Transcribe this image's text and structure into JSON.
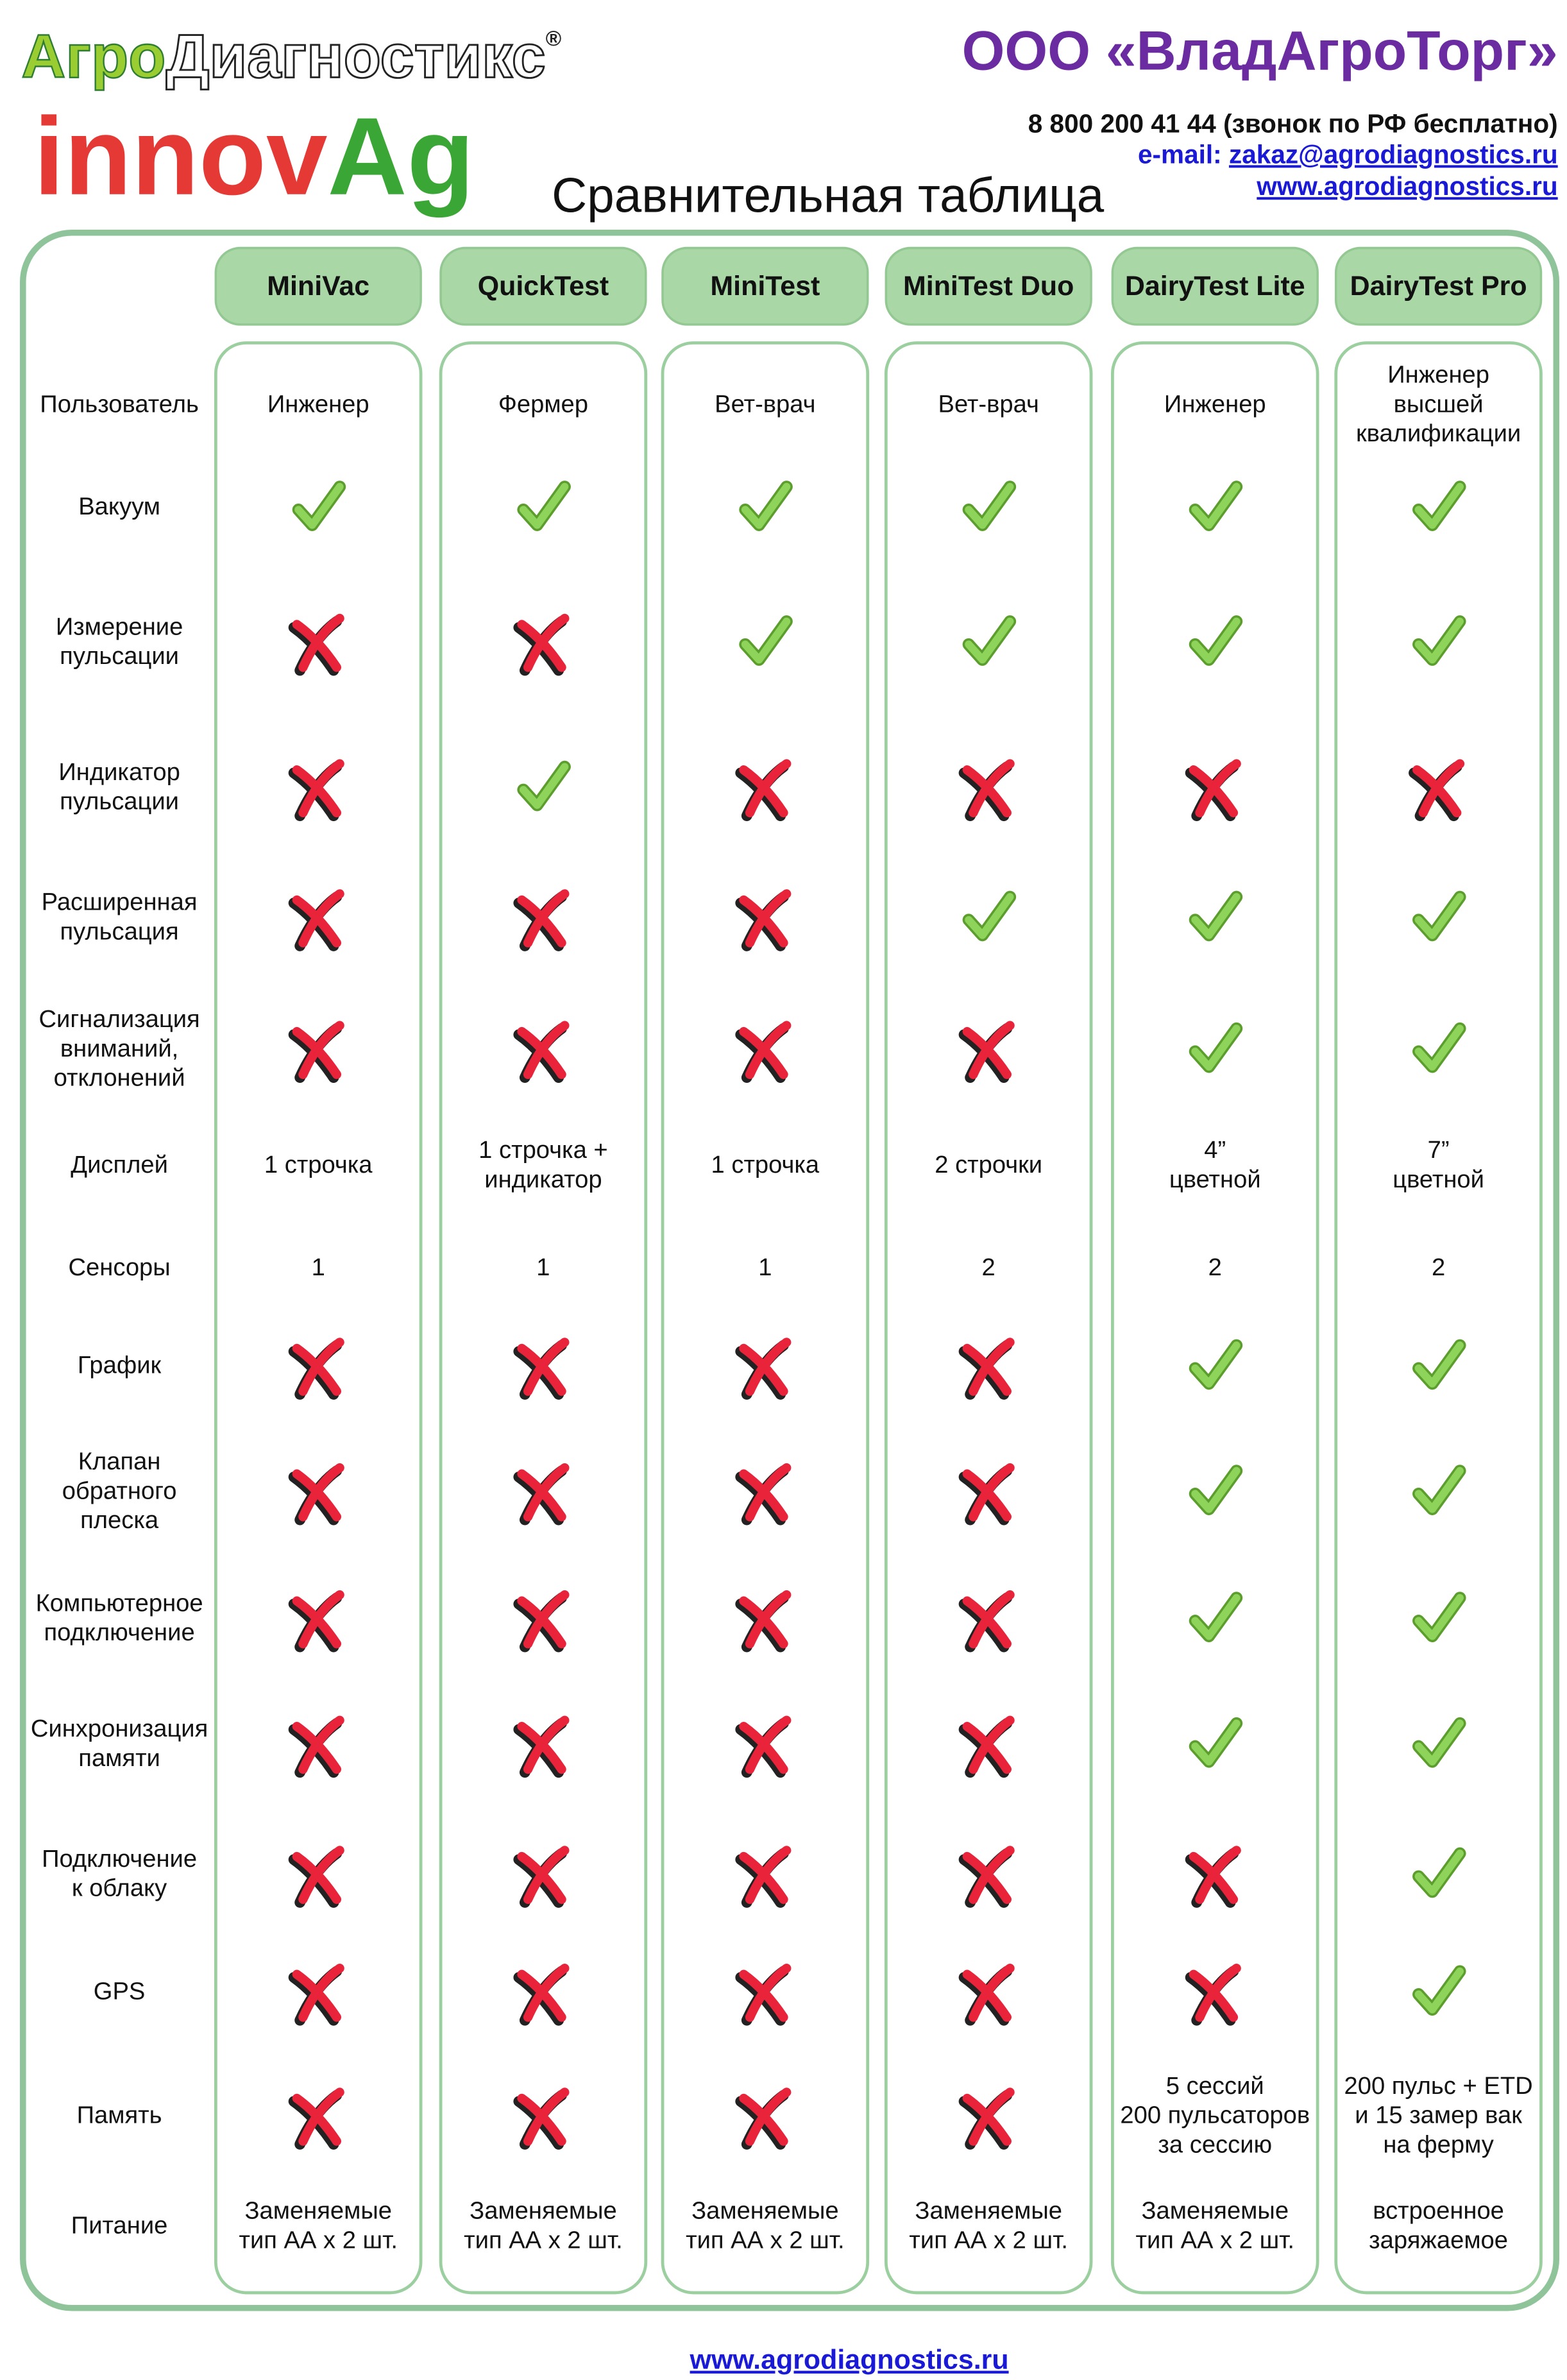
{
  "header": {
    "logo_agro": "Агро",
    "logo_diag": "Диагностикс",
    "logo_reg": "®",
    "logo_innov": "innov",
    "logo_ag": "Ag",
    "company": "ООО «ВладАгроТорг»",
    "phone": "8 800 200 41 44 (звонок по РФ бесплатно)",
    "email_label": "e-mail: ",
    "email": "zakaz@agrodiagnostics.ru",
    "site": "www.agrodiagnostics.ru",
    "title": "Сравнительная таблица"
  },
  "table": {
    "columns": [
      "MiniVac",
      "QuickTest",
      "MiniTest",
      "MiniTest Duo",
      "DairyTest Lite",
      "DairyTest Pro"
    ],
    "rows": [
      {
        "label": [
          "Пользователь"
        ],
        "cells": [
          [
            "Инженер"
          ],
          [
            "Фермер"
          ],
          [
            "Вет-врач"
          ],
          [
            "Вет-врач"
          ],
          [
            "Инженер"
          ],
          [
            "Инженер",
            "высшей",
            "квалификации"
          ]
        ]
      },
      {
        "label": [
          "Вакуум"
        ],
        "cells": [
          true,
          true,
          true,
          true,
          true,
          true
        ]
      },
      {
        "label": [
          "Измерение",
          "пульсации"
        ],
        "cells": [
          false,
          false,
          true,
          true,
          true,
          true
        ]
      },
      {
        "label": [
          "Индикатор",
          "пульсации"
        ],
        "cells": [
          false,
          true,
          false,
          false,
          false,
          false
        ]
      },
      {
        "label": [
          "Расширенная",
          "пульсация"
        ],
        "cells": [
          false,
          false,
          false,
          true,
          true,
          true
        ]
      },
      {
        "label": [
          "Сигнализация",
          "вниманий,",
          "отклонений"
        ],
        "cells": [
          false,
          false,
          false,
          false,
          true,
          true
        ]
      },
      {
        "label": [
          "Дисплей"
        ],
        "cells": [
          [
            "1 строчка"
          ],
          [
            "1 строчка +",
            "индикатор"
          ],
          [
            "1 строчка"
          ],
          [
            "2 строчки"
          ],
          [
            "4”",
            "цветной"
          ],
          [
            "7”",
            "цветной"
          ]
        ]
      },
      {
        "label": [
          "Сенсоры"
        ],
        "cells": [
          [
            "1"
          ],
          [
            "1"
          ],
          [
            "1"
          ],
          [
            "2"
          ],
          [
            "2"
          ],
          [
            "2"
          ]
        ]
      },
      {
        "label": [
          "График"
        ],
        "cells": [
          false,
          false,
          false,
          false,
          true,
          true
        ]
      },
      {
        "label": [
          "Клапан",
          "обратного",
          "плеска"
        ],
        "cells": [
          false,
          false,
          false,
          false,
          true,
          true
        ]
      },
      {
        "label": [
          "Компьютерное",
          "подключение"
        ],
        "cells": [
          false,
          false,
          false,
          false,
          true,
          true
        ]
      },
      {
        "label": [
          "Синхронизация",
          "памяти"
        ],
        "cells": [
          false,
          false,
          false,
          false,
          true,
          true
        ]
      },
      {
        "label": [
          "Подключение",
          "к облаку"
        ],
        "cells": [
          false,
          false,
          false,
          false,
          false,
          true
        ]
      },
      {
        "label": [
          "GPS"
        ],
        "cells": [
          false,
          false,
          false,
          false,
          false,
          true
        ]
      },
      {
        "label": [
          "Память"
        ],
        "cells": [
          false,
          false,
          false,
          false,
          [
            "5 сессий",
            "200 пульсаторов",
            "за сессию"
          ],
          [
            "200 пульс + ETD",
            "и 15 замер вак",
            "на ферму"
          ]
        ]
      },
      {
        "label": [
          "Питание"
        ],
        "cells": [
          [
            "Заменяемые",
            "тип АА х 2 шт."
          ],
          [
            "Заменяемые",
            "тип АА х 2 шт."
          ],
          [
            "Заменяемые",
            "тип АА х 2 шт."
          ],
          [
            "Заменяемые",
            "тип АА х 2 шт."
          ],
          [
            "Заменяемые",
            "тип АА х 2 шт."
          ],
          [
            "встроенное",
            "заряжаемое"
          ]
        ]
      }
    ]
  },
  "footer": {
    "site": "www.agrodiagnostics.ru"
  }
}
